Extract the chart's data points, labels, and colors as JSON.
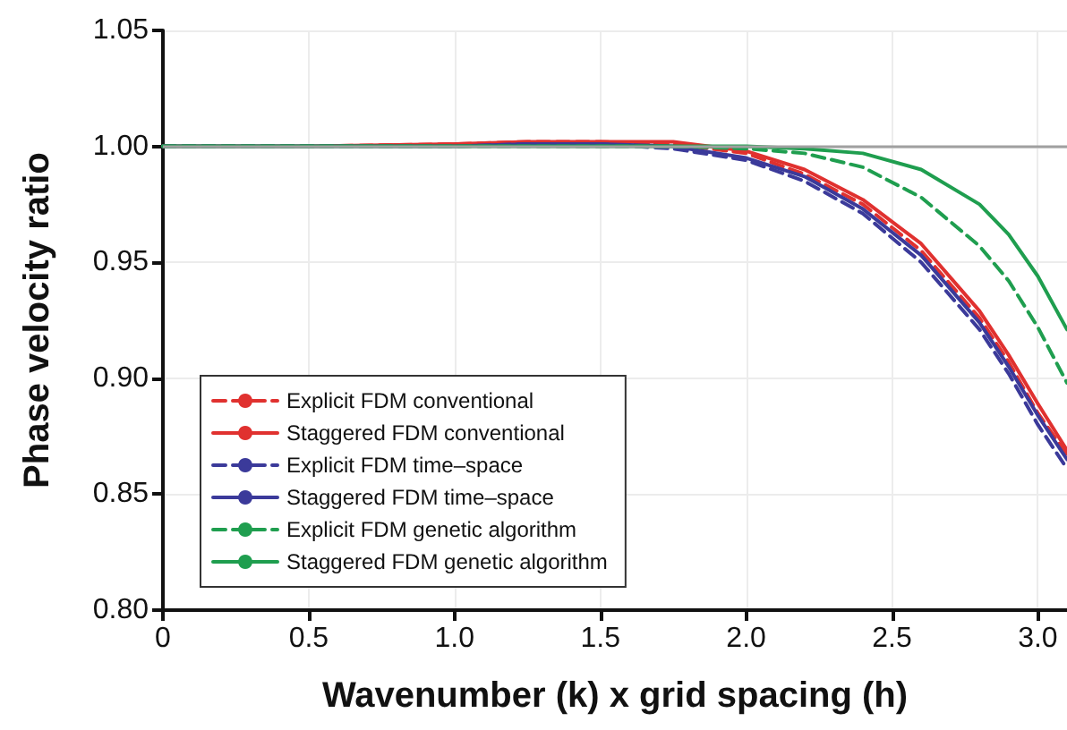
{
  "chart_data": {
    "type": "line",
    "xlabel": "Wavenumber (k) x grid spacing (h)",
    "ylabel": "Phase velocity ratio",
    "x": [
      0,
      0.5,
      1.0,
      1.25,
      1.5,
      1.75,
      2.0,
      2.2,
      2.4,
      2.6,
      2.8,
      2.9,
      3.0,
      3.1
    ],
    "series": [
      {
        "name": "Explicit FDM conventional",
        "color": "#e0312f",
        "line_style": "dashed",
        "values": [
          1,
          1,
          1.001,
          1.002,
          1.002,
          1.001,
          0.997,
          0.988,
          0.975,
          0.955,
          0.926,
          0.907,
          0.885,
          0.867
        ]
      },
      {
        "name": "Staggered FDM conventional",
        "color": "#e0312f",
        "line_style": "solid",
        "values": [
          1,
          1,
          1.001,
          1.002,
          1.002,
          1.002,
          0.998,
          0.99,
          0.977,
          0.958,
          0.929,
          0.91,
          0.889,
          0.869
        ]
      },
      {
        "name": "Explicit FDM time–space",
        "color": "#3b3a9a",
        "line_style": "dashed",
        "values": [
          1,
          1,
          1.0,
          1.001,
          1.001,
          0.999,
          0.994,
          0.985,
          0.971,
          0.95,
          0.921,
          0.902,
          0.88,
          0.861
        ]
      },
      {
        "name": "Staggered FDM time–space",
        "color": "#3b3a9a",
        "line_style": "solid",
        "values": [
          1,
          1,
          1.0,
          1.001,
          1.001,
          1.0,
          0.995,
          0.987,
          0.973,
          0.953,
          0.924,
          0.905,
          0.884,
          0.865
        ]
      },
      {
        "name": "Explicit FDM genetic algorithm",
        "color": "#1f9e4f",
        "line_style": "dashed",
        "values": [
          1,
          1,
          1,
          1,
          1,
          1,
          0.999,
          0.997,
          0.991,
          0.978,
          0.957,
          0.942,
          0.922,
          0.898
        ]
      },
      {
        "name": "Staggered FDM genetic algorithm",
        "color": "#1f9e4f",
        "line_style": "solid",
        "values": [
          1,
          1,
          1,
          1,
          1,
          1,
          1,
          0.999,
          0.997,
          0.99,
          0.975,
          0.962,
          0.944,
          0.921
        ]
      }
    ],
    "xlim": [
      0,
      3.1
    ],
    "ylim": [
      0.8,
      1.05
    ],
    "xticks": [
      0,
      0.5,
      {
        "value": 1,
        "label": "1.0"
      },
      1.5,
      {
        "value": 2,
        "label": "2.0"
      },
      2.5,
      {
        "value": 3,
        "label": "3.0"
      }
    ],
    "yticks": [
      {
        "value": 0.8,
        "label": "0.80"
      },
      {
        "value": 0.85,
        "label": "0.85"
      },
      {
        "value": 0.9,
        "label": "0.90"
      },
      {
        "value": 0.95,
        "label": "0.95"
      },
      {
        "value": 1,
        "label": "1.00"
      },
      {
        "value": 1.05,
        "label": "1.05"
      }
    ],
    "ref_lines": [
      {
        "axis": "y",
        "value": 1,
        "color": "#a0a0a0"
      }
    ],
    "grid": true,
    "legend": "bottom left",
    "marker": "none"
  }
}
